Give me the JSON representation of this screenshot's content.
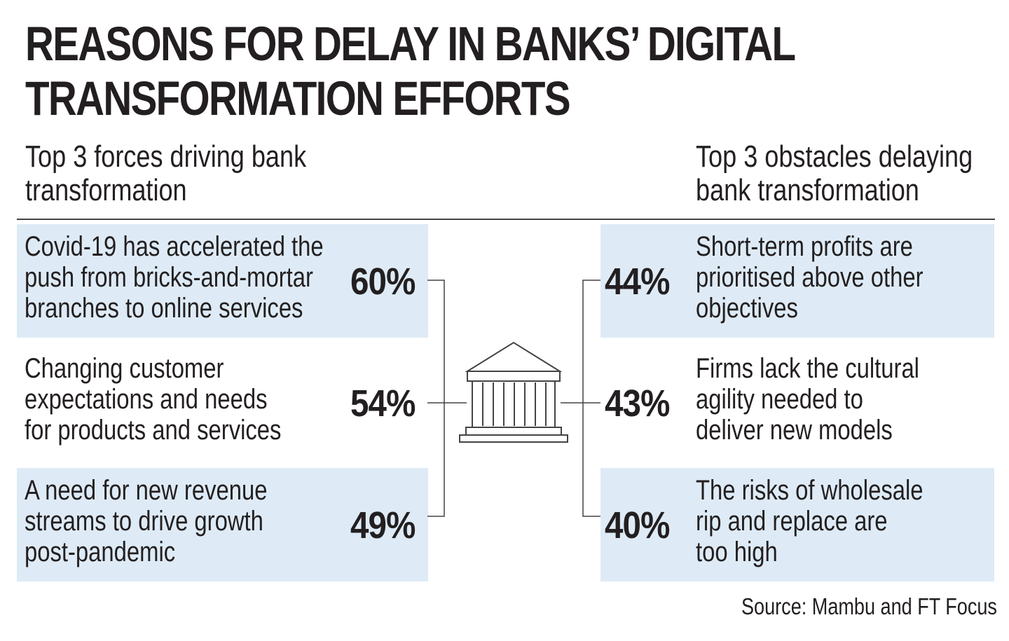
{
  "title": [
    "REASONS FOR DELAY IN BANKS’ DIGITAL",
    "TRANSFORMATION EFFORTS"
  ],
  "left_heading": [
    "Top 3 forces driving bank",
    "transformation"
  ],
  "right_heading": [
    "Top 3 obstacles delaying",
    "bank transformation"
  ],
  "source": "Source: Mambu and FT Focus",
  "colors": {
    "row_shade": "#deebf6",
    "text": "#231f20",
    "line": "#444444"
  },
  "icon": "bank-building-icon",
  "chart_data": {
    "type": "table",
    "title": "REASONS FOR DELAY IN BANKS’ DIGITAL TRANSFORMATION EFFORTS",
    "groups": [
      {
        "name": "Top 3 forces driving bank transformation",
        "items": [
          {
            "label": [
              "Covid-19 has accelerated the",
              "push from bricks-and-mortar",
              "branches to online services"
            ],
            "value": 60,
            "value_label": "60%"
          },
          {
            "label": [
              "Changing customer",
              "expectations and needs",
              "for products and services"
            ],
            "value": 54,
            "value_label": "54%"
          },
          {
            "label": [
              "A need for new revenue",
              "streams to drive growth",
              "post-pandemic"
            ],
            "value": 49,
            "value_label": "49%"
          }
        ]
      },
      {
        "name": "Top 3 obstacles delaying bank transformation",
        "items": [
          {
            "label": [
              "Short-term profits are",
              "prioritised above other",
              "objectives"
            ],
            "value": 44,
            "value_label": "44%"
          },
          {
            "label": [
              "Firms lack the cultural",
              "agility needed to",
              "deliver new models"
            ],
            "value": 43,
            "value_label": "43%"
          },
          {
            "label": [
              "The risks of wholesale",
              "rip and replace are",
              "too high"
            ],
            "value": 40,
            "value_label": "40%"
          }
        ]
      }
    ]
  }
}
